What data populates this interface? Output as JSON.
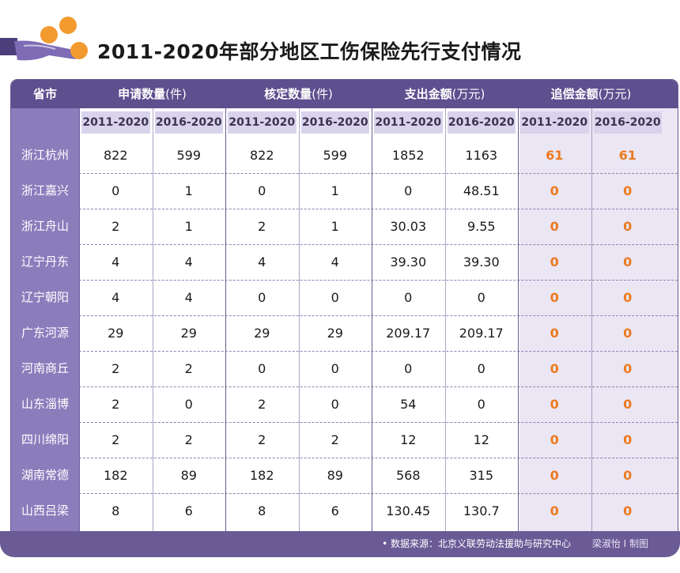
{
  "header": {
    "title": "2011-2020年部分地区工伤保险先行支付情况",
    "logo_icon": "coins-hand-icon"
  },
  "colors": {
    "header_bg": "#5e4f8e",
    "province_bg": "#8b7cbc",
    "subheader_bg": "#d9d3ec",
    "recover_bg": "#ebe6f4",
    "highlight": "#ec7a20",
    "coin": "#f29a2e"
  },
  "chart_data": {
    "type": "table",
    "title": "2011-2020年部分地区工伤保险先行支付情况",
    "columns": [
      {
        "label": "省市",
        "unit": ""
      },
      {
        "label": "申请数量",
        "unit": "(件)"
      },
      {
        "label": "核定数量",
        "unit": "(件)"
      },
      {
        "label": "支出金额",
        "unit": "(万元)"
      },
      {
        "label": "追偿金额",
        "unit": "(万元)"
      }
    ],
    "periods": [
      "2011-2020",
      "2016-2020"
    ],
    "rows": [
      {
        "province": "浙江杭州",
        "values": [
          "822",
          "599",
          "822",
          "599",
          "1852",
          "1163",
          "61",
          "61"
        ]
      },
      {
        "province": "浙江嘉兴",
        "values": [
          "0",
          "1",
          "0",
          "1",
          "0",
          "48.51",
          "0",
          "0"
        ]
      },
      {
        "province": "浙江舟山",
        "values": [
          "2",
          "1",
          "2",
          "1",
          "30.03",
          "9.55",
          "0",
          "0"
        ]
      },
      {
        "province": "辽宁丹东",
        "values": [
          "4",
          "4",
          "4",
          "4",
          "39.30",
          "39.30",
          "0",
          "0"
        ]
      },
      {
        "province": "辽宁朝阳",
        "values": [
          "4",
          "4",
          "0",
          "0",
          "0",
          "0",
          "0",
          "0"
        ]
      },
      {
        "province": "广东河源",
        "values": [
          "29",
          "29",
          "29",
          "29",
          "209.17",
          "209.17",
          "0",
          "0"
        ]
      },
      {
        "province": "河南商丘",
        "values": [
          "2",
          "2",
          "0",
          "0",
          "0",
          "0",
          "0",
          "0"
        ]
      },
      {
        "province": "山东淄博",
        "values": [
          "2",
          "0",
          "2",
          "0",
          "54",
          "0",
          "0",
          "0"
        ]
      },
      {
        "province": "四川绵阳",
        "values": [
          "2",
          "2",
          "2",
          "2",
          "12",
          "12",
          "0",
          "0"
        ]
      },
      {
        "province": "湖南常德",
        "values": [
          "182",
          "89",
          "182",
          "89",
          "568",
          "315",
          "0",
          "0"
        ]
      },
      {
        "province": "山西吕梁",
        "values": [
          "8",
          "6",
          "8",
          "6",
          "130.45",
          "130.7",
          "0",
          "0"
        ]
      }
    ]
  },
  "footer": {
    "source": "• 数据来源：北京义联劳动法援助与研究中心",
    "author": "梁淑怡 I 制图"
  }
}
